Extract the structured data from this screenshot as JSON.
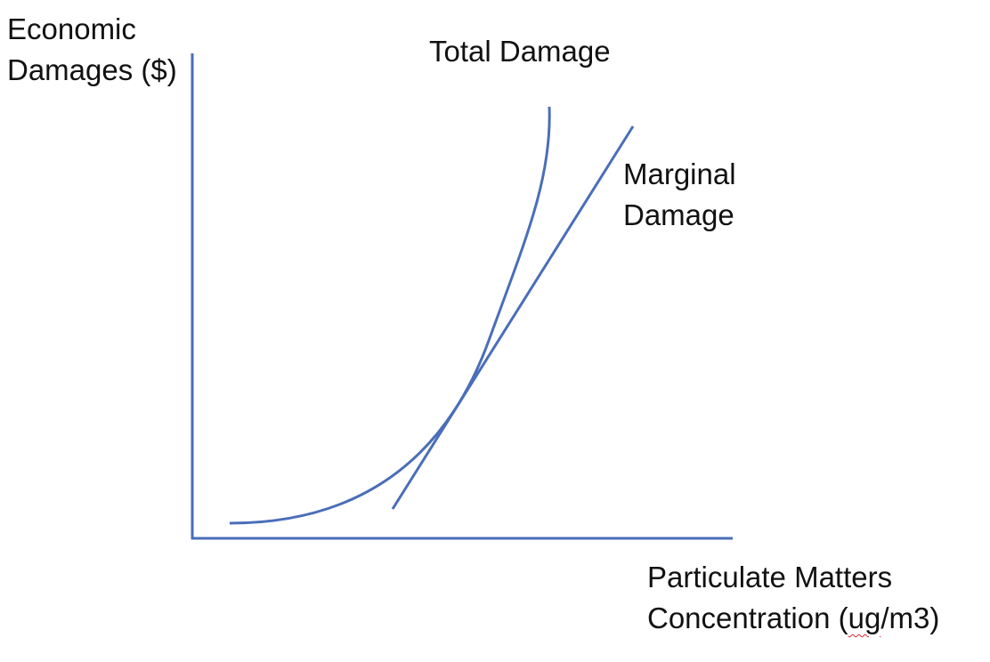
{
  "labels": {
    "y_axis": [
      "Economic",
      "Damages ($)"
    ],
    "total_damage": "Total Damage",
    "marginal_damage": [
      "Marginal",
      "Damage"
    ],
    "x_axis_line1": "Particulate Matters",
    "x_axis_line2_pre": "Concentration (",
    "x_axis_line2_squiggle": "ug",
    "x_axis_line2_post": "/m3)"
  },
  "colors": {
    "curve": "#4a6eb8",
    "axis": "#4a6eb8",
    "text": "#111111",
    "spellcheck_underline": "#d62b2b"
  }
}
